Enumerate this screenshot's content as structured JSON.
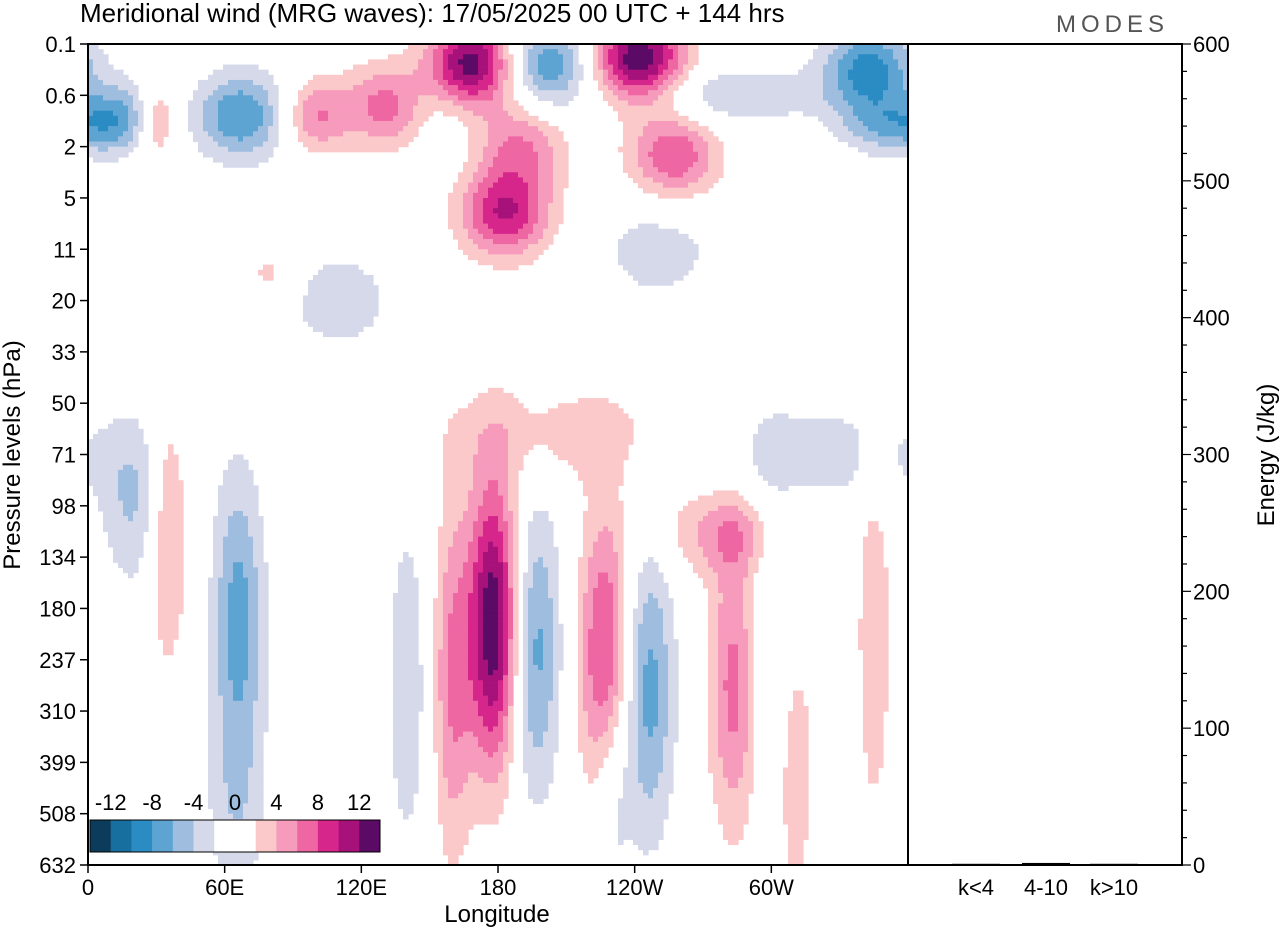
{
  "header": {
    "title": "Meridional wind (MRG waves):  17/05/2025  00 UTC  + 144 hrs",
    "brand": "MODES"
  },
  "chart_data": {
    "type": "heatmap",
    "xlabel": "Longitude",
    "ylabel": "Pressure levels (hPa)",
    "x_ticks": [
      "0",
      "60E",
      "120E",
      "180",
      "120W",
      "60W"
    ],
    "x_tick_degrees": [
      0,
      60,
      120,
      180,
      240,
      300
    ],
    "x_range_degrees": [
      0,
      360
    ],
    "y_ticks": [
      "0.1",
      "0.6",
      "2",
      "5",
      "11",
      "20",
      "33",
      "50",
      "71",
      "98",
      "134",
      "180",
      "237",
      "310",
      "399",
      "508",
      "632"
    ],
    "colorbar": {
      "labels": [
        "-12",
        "-8",
        "-4",
        "0",
        "4",
        "8",
        "12"
      ],
      "colors": [
        "#0d3b5c",
        "#166f9e",
        "#2b8cc4",
        "#5ea4d2",
        "#9fbedf",
        "#d6d9ea",
        "#ffffff",
        "#ffffff",
        "#fbc9c9",
        "#f79bbd",
        "#ee67a3",
        "#d6268c",
        "#a7117a",
        "#5b0a66"
      ]
    },
    "field_features": [
      {
        "lon": 168,
        "level_index": 0.4,
        "value": 14
      },
      {
        "lon": 242,
        "level_index": 0.3,
        "value": 14
      },
      {
        "lon": 201,
        "level_index": 0.4,
        "value": -8
      },
      {
        "lon": 343,
        "level_index": 0.5,
        "value": -9
      },
      {
        "lon": 67,
        "level_index": 1.4,
        "value": -8
      },
      {
        "lon": 133,
        "level_index": 1.2,
        "value": 8
      },
      {
        "lon": 190,
        "level_index": 2.0,
        "value": 6
      },
      {
        "lon": 183,
        "level_index": 3.3,
        "value": 10
      },
      {
        "lon": 257,
        "level_index": 2.2,
        "value": 8
      },
      {
        "lon": 178,
        "level_index": 11.3,
        "value": 14
      },
      {
        "lon": 196,
        "level_index": 11.8,
        "value": -7
      },
      {
        "lon": 227,
        "level_index": 12.0,
        "value": 9
      },
      {
        "lon": 66,
        "level_index": 11.2,
        "value": -7
      },
      {
        "lon": 246,
        "level_index": 12.6,
        "value": -7
      },
      {
        "lon": 284,
        "level_index": 12.5,
        "value": 7
      }
    ],
    "energy_panel": {
      "ylabel": "Energy (J/kg)",
      "y_ticks": [
        "0",
        "100",
        "200",
        "300",
        "400",
        "500",
        "600"
      ],
      "ylim": [
        0,
        600
      ],
      "categories": [
        "k<4",
        "4-10",
        "k>10"
      ],
      "values": [
        0.3,
        1.5,
        0.3
      ]
    }
  }
}
